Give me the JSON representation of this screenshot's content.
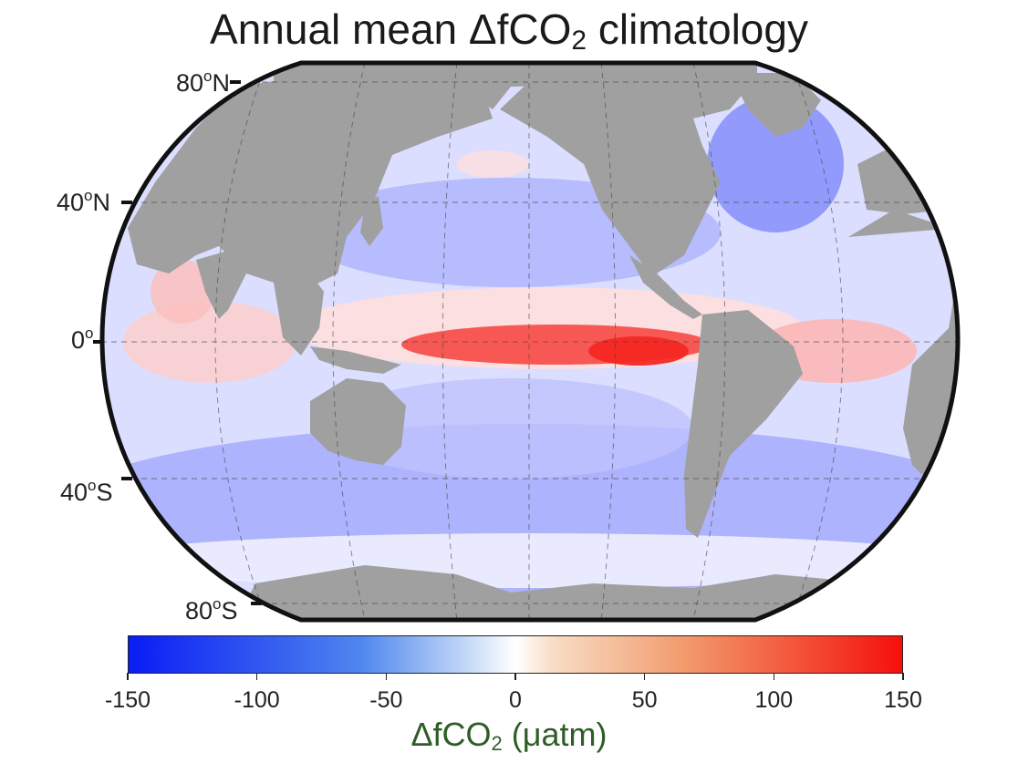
{
  "title": {
    "main": "Annual mean ΔfCO",
    "sub": "2",
    "rest": " climatology"
  },
  "latitude_labels": [
    {
      "deg": "80",
      "sup": "o",
      "hemi": "N"
    },
    {
      "deg": "40",
      "sup": "o",
      "hemi": "N"
    },
    {
      "deg": "0",
      "sup": "o",
      "hemi": ""
    },
    {
      "deg": "40",
      "sup": "o",
      "hemi": "S"
    },
    {
      "deg": "80",
      "sup": "o",
      "hemi": "S"
    }
  ],
  "colorbar": {
    "min": -150,
    "max": 150,
    "colors": {
      "min": "#0a1cf5",
      "mid": "#ffffff",
      "max": "#f5100a"
    },
    "ticks": [
      "-150",
      "-100",
      "-50",
      "0",
      "50",
      "100",
      "150"
    ],
    "label_main": "ΔfCO",
    "label_sub": "2",
    "label_rest": " (μatm)",
    "label_color": "#2f5d28"
  },
  "map": {
    "projection": "Robinson",
    "land_color": "#a0a0a0",
    "features": [
      {
        "name": "equatorial-pacific",
        "value": 110
      },
      {
        "name": "east-equatorial-pacific",
        "value": 135
      },
      {
        "name": "equatorial-atlantic",
        "value": 45
      },
      {
        "name": "arabian-sea",
        "value": 40
      },
      {
        "name": "north-pacific",
        "value": -50
      },
      {
        "name": "north-atlantic",
        "value": -75
      },
      {
        "name": "southern-ocean",
        "value": -55
      },
      {
        "name": "subtropical-south-pacific",
        "value": -40
      }
    ]
  }
}
